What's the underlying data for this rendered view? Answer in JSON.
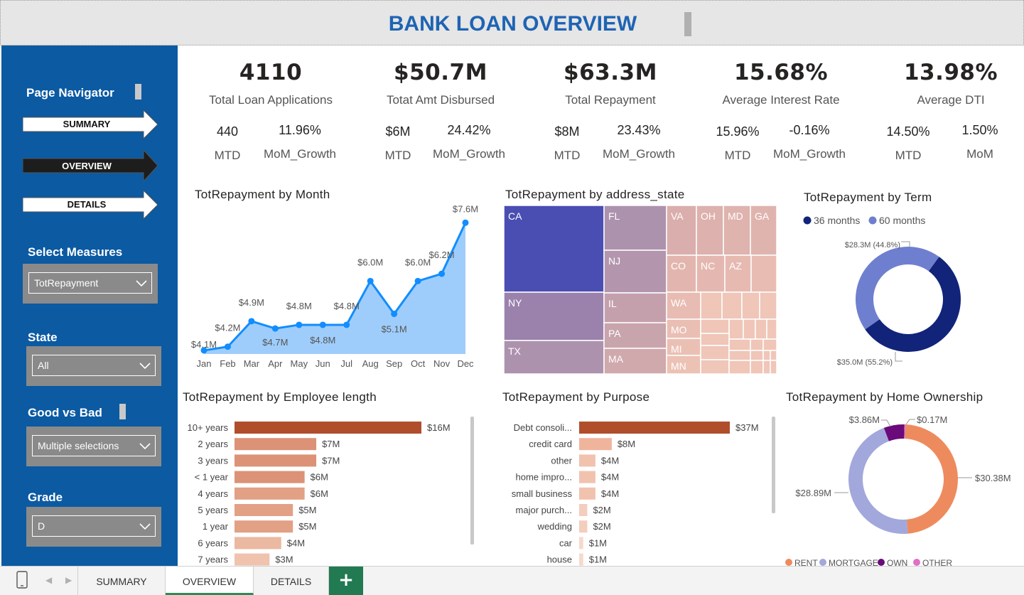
{
  "title": "BANK LOAN OVERVIEW",
  "sidebar": {
    "navigator_label": "Page Navigator",
    "nav": [
      {
        "label": "SUMMARY",
        "active": false
      },
      {
        "label": "OVERVIEW",
        "active": true
      },
      {
        "label": "DETAILS",
        "active": false
      }
    ],
    "slicers": [
      {
        "label": "Select Measures",
        "value": "TotRepayment"
      },
      {
        "label": "State",
        "value": "All"
      },
      {
        "label": "Good vs Bad",
        "value": "Multiple selections"
      },
      {
        "label": "Grade",
        "value": "D"
      }
    ]
  },
  "kpis": [
    {
      "value": "4110",
      "label": "Total Loan Applications",
      "mtd": "440",
      "mtd_label": "MTD",
      "growth": "11.96%",
      "growth_label": "MoM_Growth"
    },
    {
      "value": "$50.7M",
      "label": "Totat Amt Disbursed",
      "mtd": "$6M",
      "mtd_label": "MTD",
      "growth": "24.42%",
      "growth_label": "MoM_Growth"
    },
    {
      "value": "$63.3M",
      "label": "Total Repayment",
      "mtd": "$8M",
      "mtd_label": "MTD",
      "growth": "23.43%",
      "growth_label": "MoM_Growth"
    },
    {
      "value": "15.68%",
      "label": "Average Interest Rate",
      "mtd": "15.96%",
      "mtd_label": "MTD",
      "growth": "-0.16%",
      "growth_label": "MoM_Growth"
    },
    {
      "value": "13.98%",
      "label": "Average DTI",
      "mtd": "14.50%",
      "mtd_label": "MTD",
      "growth": "1.50%",
      "growth_label": "MoM"
    }
  ],
  "chart_data": [
    {
      "type": "area",
      "title": "TotRepayment by Month",
      "categories": [
        "Jan",
        "Feb",
        "Mar",
        "Apr",
        "May",
        "Jun",
        "Jul",
        "Aug",
        "Sep",
        "Oct",
        "Nov",
        "Dec"
      ],
      "values": [
        4.1,
        4.2,
        4.9,
        4.7,
        4.8,
        4.8,
        4.8,
        6.0,
        5.1,
        6.0,
        6.2,
        7.6
      ],
      "labels": [
        "$4.1M",
        "$4.2M",
        "$4.9M",
        "$4.7M",
        "$4.8M",
        "$4.8M",
        "$4.8M",
        "$6.0M",
        "$5.1M",
        "$6.0M",
        "$6.2M",
        "$7.6M"
      ],
      "ylim": [
        4.0,
        7.8
      ],
      "color": "#118dff",
      "fill": "#9fcdfb"
    },
    {
      "type": "treemap",
      "title": "TotRepayment by address_state",
      "categories": [
        "CA",
        "NY",
        "TX",
        "FL",
        "NJ",
        "IL",
        "PA",
        "MA",
        "VA",
        "OH",
        "MD",
        "GA",
        "CO",
        "NC",
        "AZ",
        "WA",
        "MO",
        "MI",
        "MN"
      ]
    },
    {
      "type": "donut",
      "title": "TotRepayment by Term",
      "legend": [
        "36 months",
        "60 months"
      ],
      "values": [
        35.0,
        28.3
      ],
      "labels": [
        "$35.0M (55.2%)",
        "$28.3M (44.8%)"
      ],
      "colors": [
        "#12237a",
        "#6f7fcf"
      ]
    },
    {
      "type": "bar",
      "title": "TotRepayment by Employee length",
      "categories": [
        "10+ years",
        "2 years",
        "3 years",
        "< 1 year",
        "4 years",
        "5 years",
        "1 year",
        "6 years",
        "7 years"
      ],
      "values": [
        16,
        7,
        7,
        6,
        6,
        5,
        5,
        4,
        3
      ],
      "labels": [
        "$16M",
        "$7M",
        "$7M",
        "$6M",
        "$6M",
        "$5M",
        "$5M",
        "$4M",
        "$3M"
      ],
      "colors": [
        "#b04e2c",
        "#dc9276",
        "#dc9276",
        "#dc9276",
        "#e2a085",
        "#e2a085",
        "#e2a085",
        "#ebb8a1",
        "#efc3ae"
      ]
    },
    {
      "type": "bar",
      "title": "TotRepayment by Purpose",
      "categories": [
        "Debt consoli...",
        "credit card",
        "other",
        "home impro...",
        "small business",
        "major purch...",
        "wedding",
        "car",
        "house"
      ],
      "values": [
        37,
        8,
        4,
        4,
        4,
        2,
        2,
        1,
        1
      ],
      "labels": [
        "$37M",
        "$8M",
        "$4M",
        "$4M",
        "$4M",
        "$2M",
        "$2M",
        "$1M",
        "$1M"
      ],
      "colors": [
        "#b04e2c",
        "#efb49c",
        "#f1c2ae",
        "#f1c2ae",
        "#f1c2ae",
        "#f3cdbd",
        "#f3cdbd",
        "#f6d9cc",
        "#f6d9cc"
      ]
    },
    {
      "type": "donut",
      "title": "TotRepayment by Home Ownership",
      "legend": [
        "RENT",
        "MORTGAGE",
        "OWN",
        "OTHER"
      ],
      "values": [
        30.38,
        28.89,
        3.86,
        0.17
      ],
      "labels": [
        "$30.38M",
        "$28.89M",
        "$3.86M",
        "$0.17M"
      ],
      "colors": [
        "#ee8b5e",
        "#a2a8db",
        "#6b0a7a",
        "#e070c8"
      ]
    }
  ],
  "tabs": [
    "SUMMARY",
    "OVERVIEW",
    "DETAILS"
  ],
  "active_tab": "OVERVIEW",
  "add_tab": "+"
}
